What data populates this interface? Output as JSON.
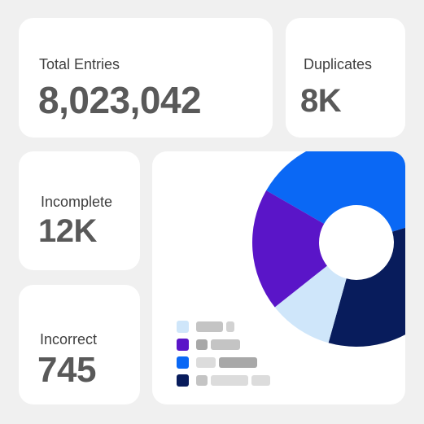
{
  "stats": {
    "total": {
      "label": "Total Entries",
      "value": "8,023,042"
    },
    "duplicates": {
      "label": "Duplicates",
      "value": "8K"
    },
    "incomplete": {
      "label": "Incomplete",
      "value": "12K"
    },
    "incorrect": {
      "label": "Incorrect",
      "value": "745"
    }
  },
  "chart_data": {
    "type": "pie",
    "donut": true,
    "slices": [
      {
        "color": "#0a68f5",
        "value": 37
      },
      {
        "color": "#081c5c",
        "value": 34
      },
      {
        "color": "#cfe6fa",
        "value": 10
      },
      {
        "color": "#5a15c8",
        "value": 19
      }
    ]
  },
  "legend": {
    "items": [
      {
        "swatch": "#cfe6fa",
        "bar_colors": [
          "#c4c4c4",
          "#d2d2d2"
        ]
      },
      {
        "swatch": "#5a15c8",
        "bar_colors": [
          "#a8a8a8",
          "#c4c4c4"
        ]
      },
      {
        "swatch": "#0a68f5",
        "bar_colors": [
          "#dcdcdc",
          "#a8a8a8"
        ]
      },
      {
        "swatch": "#081c5c",
        "bar_colors": [
          "#c4c4c4",
          "#dcdcdc",
          "#dcdcdc"
        ]
      }
    ]
  }
}
